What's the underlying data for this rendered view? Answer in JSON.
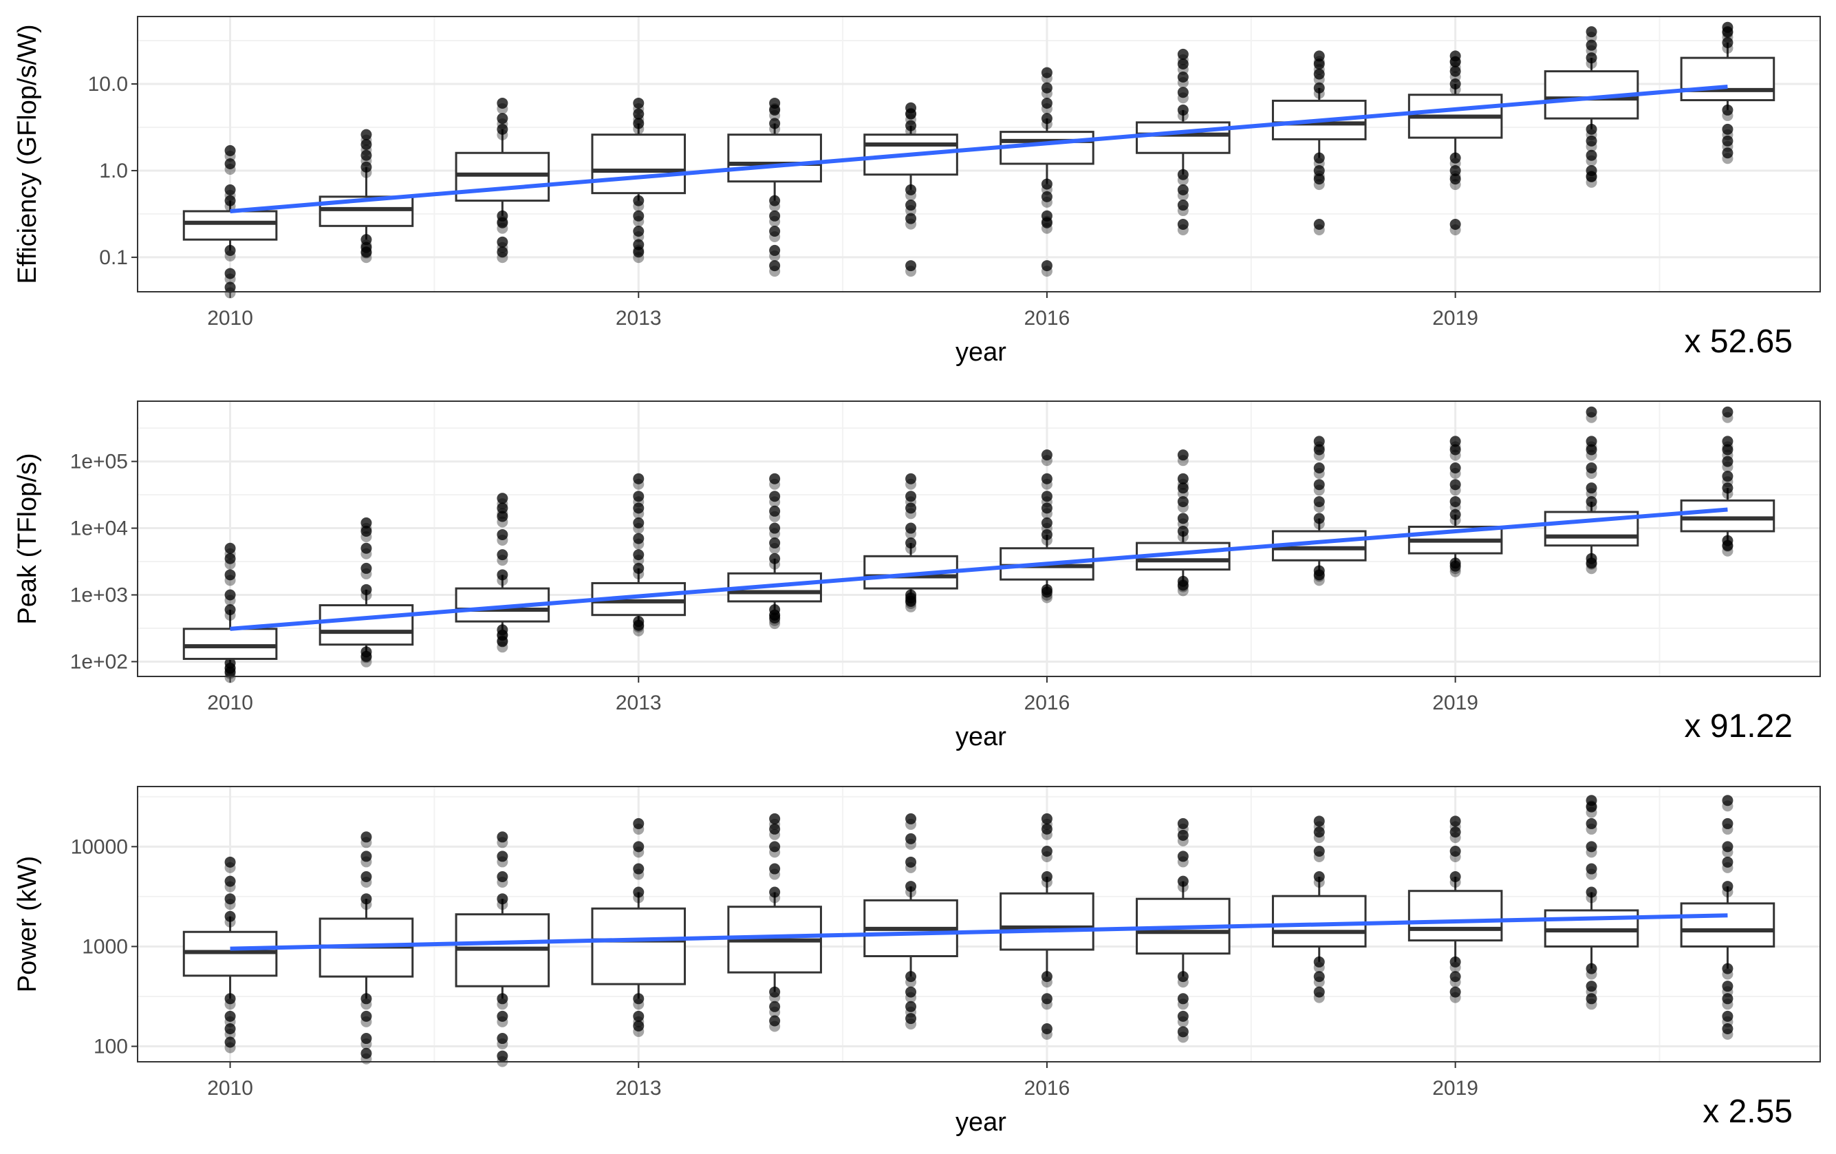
{
  "chart_data": [
    {
      "type": "boxplot",
      "ylabel": "Efficiency (GFlop/s/W)",
      "xlabel": "year",
      "yscale": "log10",
      "ylim": [
        0.04,
        60
      ],
      "yticks": [
        0.1,
        1,
        10
      ],
      "ytick_labels": [
        "0.1",
        "1.0",
        "10.0"
      ],
      "xticks": [
        2010,
        2013,
        2016,
        2019
      ],
      "xtick_labels": [
        "2010",
        "2013",
        "2016",
        "2019"
      ],
      "multiplier_label": "x 52.65",
      "boxes": [
        {
          "year": 2010,
          "q1": 0.16,
          "median": 0.25,
          "q3": 0.34,
          "outliers": [
            0.045,
            0.065,
            0.12,
            0.45,
            0.6,
            1.2,
            1.7
          ]
        },
        {
          "year": 2011,
          "q1": 0.23,
          "median": 0.36,
          "q3": 0.5,
          "outliers": [
            0.115,
            0.13,
            0.16,
            1.1,
            1.5,
            2.0,
            2.6
          ]
        },
        {
          "year": 2012,
          "q1": 0.45,
          "median": 0.9,
          "q3": 1.6,
          "outliers": [
            0.115,
            0.15,
            0.25,
            0.3,
            3.0,
            4.0,
            6.0
          ]
        },
        {
          "year": 2013,
          "q1": 0.55,
          "median": 1.0,
          "q3": 2.6,
          "outliers": [
            0.115,
            0.14,
            0.2,
            0.3,
            0.45,
            3.5,
            4.5,
            6.0
          ]
        },
        {
          "year": 2014,
          "q1": 0.75,
          "median": 1.2,
          "q3": 2.6,
          "outliers": [
            0.08,
            0.12,
            0.2,
            0.3,
            0.45,
            3.5,
            5.0,
            6.0
          ]
        },
        {
          "year": 2015,
          "q1": 0.9,
          "median": 2.0,
          "q3": 2.6,
          "outliers": [
            0.08,
            0.28,
            0.4,
            0.6,
            3.3,
            4.5,
            5.3
          ]
        },
        {
          "year": 2016,
          "q1": 1.2,
          "median": 2.2,
          "q3": 2.8,
          "outliers": [
            0.08,
            0.25,
            0.3,
            0.5,
            0.7,
            4.0,
            6.0,
            9.0,
            13.5
          ]
        },
        {
          "year": 2017,
          "q1": 1.6,
          "median": 2.6,
          "q3": 3.6,
          "outliers": [
            0.24,
            0.4,
            0.6,
            0.9,
            5.0,
            8.0,
            12.0,
            17.0,
            22.0
          ]
        },
        {
          "year": 2018,
          "q1": 2.3,
          "median": 3.5,
          "q3": 6.4,
          "outliers": [
            0.24,
            0.8,
            1.0,
            1.4,
            9.0,
            13.0,
            17.0,
            21.0
          ]
        },
        {
          "year": 2019,
          "q1": 2.4,
          "median": 4.2,
          "q3": 7.5,
          "outliers": [
            0.24,
            0.8,
            1.0,
            1.4,
            10.0,
            14.0,
            18.0,
            21.0
          ]
        },
        {
          "year": 2020,
          "q1": 4.0,
          "median": 6.8,
          "q3": 14.0,
          "outliers": [
            0.85,
            1.0,
            1.5,
            2.2,
            3.0,
            20.0,
            28.0,
            40.0
          ]
        },
        {
          "year": 2021,
          "q1": 6.5,
          "median": 8.5,
          "q3": 20.0,
          "outliers": [
            1.6,
            2.2,
            3.0,
            5.0,
            30.0,
            40.0,
            45.0
          ]
        }
      ],
      "trend": {
        "start_year": 2010,
        "start_value": 0.34,
        "end_year": 2021,
        "end_value": 9.3,
        "color": "#3366ff"
      }
    },
    {
      "type": "boxplot",
      "ylabel": "Peak (TFlop/s)",
      "xlabel": "year",
      "yscale": "log10",
      "ylim": [
        60,
        800000
      ],
      "yticks": [
        100,
        1000,
        10000,
        100000
      ],
      "ytick_labels": [
        "1e+02",
        "1e+03",
        "1e+04",
        "1e+05"
      ],
      "xticks": [
        2010,
        2013,
        2016,
        2019
      ],
      "xtick_labels": [
        "2010",
        "2013",
        "2016",
        "2019"
      ],
      "multiplier_label": "x 91.22",
      "boxes": [
        {
          "year": 2010,
          "q1": 110,
          "median": 170,
          "q3": 310,
          "outliers": [
            70,
            80,
            95,
            600,
            1000,
            2000,
            3500,
            5000
          ]
        },
        {
          "year": 2011,
          "q1": 180,
          "median": 280,
          "q3": 700,
          "outliers": [
            120,
            140,
            1200,
            2500,
            5000,
            9000,
            12000
          ]
        },
        {
          "year": 2012,
          "q1": 400,
          "median": 600,
          "q3": 1250,
          "outliers": [
            200,
            250,
            300,
            2000,
            4000,
            8000,
            15000,
            20000,
            28000
          ]
        },
        {
          "year": 2013,
          "q1": 500,
          "median": 800,
          "q3": 1500,
          "outliers": [
            350,
            400,
            2500,
            4000,
            7000,
            12000,
            20000,
            30000,
            55000
          ]
        },
        {
          "year": 2014,
          "q1": 800,
          "median": 1100,
          "q3": 2100,
          "outliers": [
            450,
            500,
            600,
            3500,
            6000,
            10000,
            18000,
            30000,
            55000
          ]
        },
        {
          "year": 2015,
          "q1": 1250,
          "median": 1900,
          "q3": 3800,
          "outliers": [
            800,
            900,
            1000,
            6000,
            10000,
            20000,
            30000,
            55000
          ]
        },
        {
          "year": 2016,
          "q1": 1700,
          "median": 2700,
          "q3": 5000,
          "outliers": [
            1100,
            1200,
            8000,
            12000,
            20000,
            30000,
            55000,
            125000
          ]
        },
        {
          "year": 2017,
          "q1": 2400,
          "median": 3300,
          "q3": 6000,
          "outliers": [
            1400,
            1600,
            9000,
            14000,
            25000,
            40000,
            55000,
            125000
          ]
        },
        {
          "year": 2018,
          "q1": 3300,
          "median": 5000,
          "q3": 9000,
          "outliers": [
            2000,
            2300,
            14000,
            25000,
            45000,
            80000,
            150000,
            200000
          ]
        },
        {
          "year": 2019,
          "q1": 4200,
          "median": 6500,
          "q3": 10500,
          "outliers": [
            2700,
            3000,
            16000,
            25000,
            45000,
            80000,
            150000,
            200000
          ]
        },
        {
          "year": 2020,
          "q1": 5500,
          "median": 7500,
          "q3": 17500,
          "outliers": [
            3000,
            3500,
            25000,
            40000,
            80000,
            150000,
            200000,
            550000
          ]
        },
        {
          "year": 2021,
          "q1": 9000,
          "median": 14000,
          "q3": 26000,
          "outliers": [
            5500,
            6500,
            40000,
            60000,
            100000,
            150000,
            200000,
            550000
          ]
        }
      ],
      "trend": {
        "start_year": 2010,
        "start_value": 310,
        "end_year": 2021,
        "end_value": 19000,
        "color": "#3366ff"
      }
    },
    {
      "type": "boxplot",
      "ylabel": "Power (kW)",
      "xlabel": "year",
      "yscale": "log10",
      "ylim": [
        70,
        40000
      ],
      "yticks": [
        100,
        1000,
        10000
      ],
      "ytick_labels": [
        "100",
        "1000",
        "10000"
      ],
      "xticks": [
        2010,
        2013,
        2016,
        2019
      ],
      "xtick_labels": [
        "2010",
        "2013",
        "2016",
        "2019"
      ],
      "multiplier_label": "x 2.55",
      "boxes": [
        {
          "year": 2010,
          "q1": 510,
          "median": 880,
          "q3": 1400,
          "outliers": [
            110,
            150,
            200,
            300,
            2000,
            3000,
            4500,
            7000
          ]
        },
        {
          "year": 2011,
          "q1": 500,
          "median": 1000,
          "q3": 1900,
          "outliers": [
            85,
            120,
            200,
            300,
            3000,
            5000,
            8000,
            12500
          ]
        },
        {
          "year": 2012,
          "q1": 400,
          "median": 950,
          "q3": 2100,
          "outliers": [
            80,
            120,
            200,
            300,
            3000,
            5000,
            8000,
            12500
          ]
        },
        {
          "year": 2013,
          "q1": 420,
          "median": 1150,
          "q3": 2400,
          "outliers": [
            160,
            200,
            300,
            3500,
            6000,
            10000,
            17000
          ]
        },
        {
          "year": 2014,
          "q1": 550,
          "median": 1150,
          "q3": 2500,
          "outliers": [
            180,
            250,
            350,
            3500,
            6000,
            10000,
            15000,
            19000
          ]
        },
        {
          "year": 2015,
          "q1": 800,
          "median": 1500,
          "q3": 2900,
          "outliers": [
            190,
            250,
            350,
            500,
            4000,
            7000,
            12000,
            19000
          ]
        },
        {
          "year": 2016,
          "q1": 930,
          "median": 1550,
          "q3": 3400,
          "outliers": [
            150,
            300,
            500,
            5000,
            9000,
            15000,
            19000
          ]
        },
        {
          "year": 2017,
          "q1": 850,
          "median": 1400,
          "q3": 3000,
          "outliers": [
            140,
            200,
            300,
            500,
            4500,
            8000,
            13000,
            17000
          ]
        },
        {
          "year": 2018,
          "q1": 1000,
          "median": 1400,
          "q3": 3200,
          "outliers": [
            350,
            500,
            700,
            5000,
            9000,
            14000,
            18000
          ]
        },
        {
          "year": 2019,
          "q1": 1150,
          "median": 1500,
          "q3": 3600,
          "outliers": [
            350,
            500,
            700,
            5000,
            9000,
            14000,
            18000
          ]
        },
        {
          "year": 2020,
          "q1": 1000,
          "median": 1450,
          "q3": 2300,
          "outliers": [
            300,
            400,
            600,
            3500,
            6000,
            10000,
            17000,
            25000,
            29000
          ]
        },
        {
          "year": 2021,
          "q1": 1000,
          "median": 1450,
          "q3": 2700,
          "outliers": [
            150,
            200,
            300,
            400,
            600,
            4000,
            7000,
            10000,
            17000,
            29000
          ]
        }
      ],
      "trend": {
        "start_year": 2010,
        "start_value": 950,
        "end_year": 2021,
        "end_value": 2050,
        "color": "#3366ff"
      }
    }
  ]
}
